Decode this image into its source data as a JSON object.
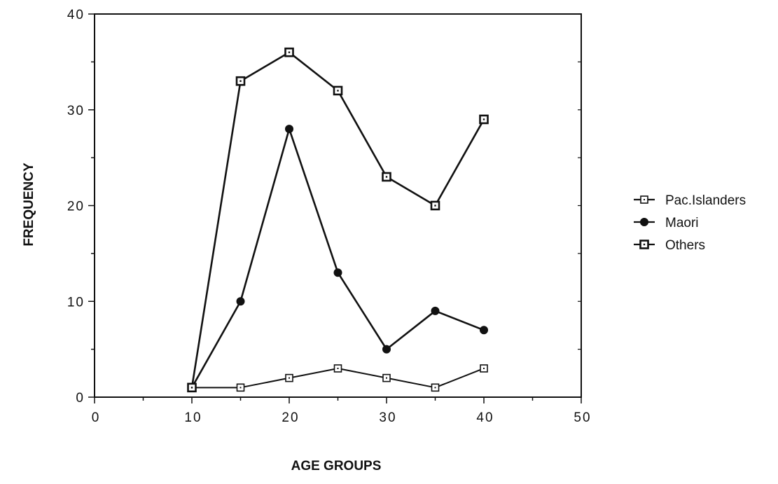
{
  "chart_data": {
    "type": "line",
    "xlabel": "AGE GROUPS",
    "ylabel": "FREQUENCY",
    "xlim": [
      0,
      50
    ],
    "ylim": [
      0,
      40
    ],
    "xticks": [
      0,
      10,
      20,
      30,
      40,
      50
    ],
    "yticks": [
      0,
      10,
      20,
      30,
      40
    ],
    "grid": false,
    "legend_position": "right",
    "x": [
      10,
      15,
      20,
      25,
      30,
      35,
      40
    ],
    "series": [
      {
        "name": "Pac.Islanders",
        "marker": "open-square",
        "color": "#111111",
        "values": [
          1,
          1,
          2,
          3,
          2,
          1,
          3
        ]
      },
      {
        "name": "Maori",
        "marker": "filled-diamond",
        "color": "#111111",
        "values": [
          1,
          10,
          28,
          13,
          5,
          9,
          7
        ]
      },
      {
        "name": "Others",
        "marker": "bold-open-square",
        "color": "#111111",
        "values": [
          1,
          33,
          36,
          32,
          23,
          20,
          29
        ]
      }
    ]
  }
}
